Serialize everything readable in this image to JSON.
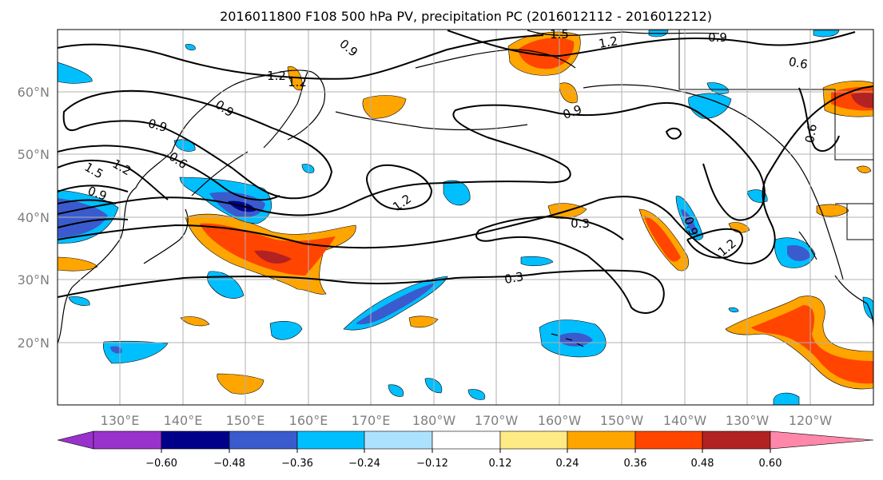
{
  "title": "2016011800 F108 500 hPa PV, precipitation PC (2016012112 - 2016012212)",
  "map": {
    "lon_labels": [
      "130°E",
      "140°E",
      "150°E",
      "160°E",
      "170°E",
      "180°W",
      "170°W",
      "160°W",
      "150°W",
      "140°W",
      "130°W",
      "120°W"
    ],
    "lat_labels": [
      "60°N",
      "50°N",
      "40°N",
      "30°N",
      "20°N"
    ],
    "contour_labels": [
      "1.5",
      "1.2",
      "0.9",
      "0.6",
      "0.9",
      "1.2",
      "0.9",
      "0.6",
      "1.5",
      "1.2",
      "0.9",
      "1.2",
      "0.3",
      "0.3",
      "0.9",
      "1.2",
      "0.6",
      "0.9",
      "0.9",
      "1.2"
    ]
  },
  "colorbar": {
    "ticks": [
      "−0.60",
      "−0.48",
      "−0.36",
      "−0.24",
      "−0.12",
      "0.12",
      "0.24",
      "0.36",
      "0.48",
      "0.60"
    ],
    "colors": [
      "#9932CC",
      "#00008B",
      "#3A5BCD",
      "#00BFFF",
      "#ADE2FF",
      "#FFFFFF",
      "#FFEB85",
      "#FFA500",
      "#FF4500",
      "#B22222",
      "#FF88AA"
    ]
  }
}
